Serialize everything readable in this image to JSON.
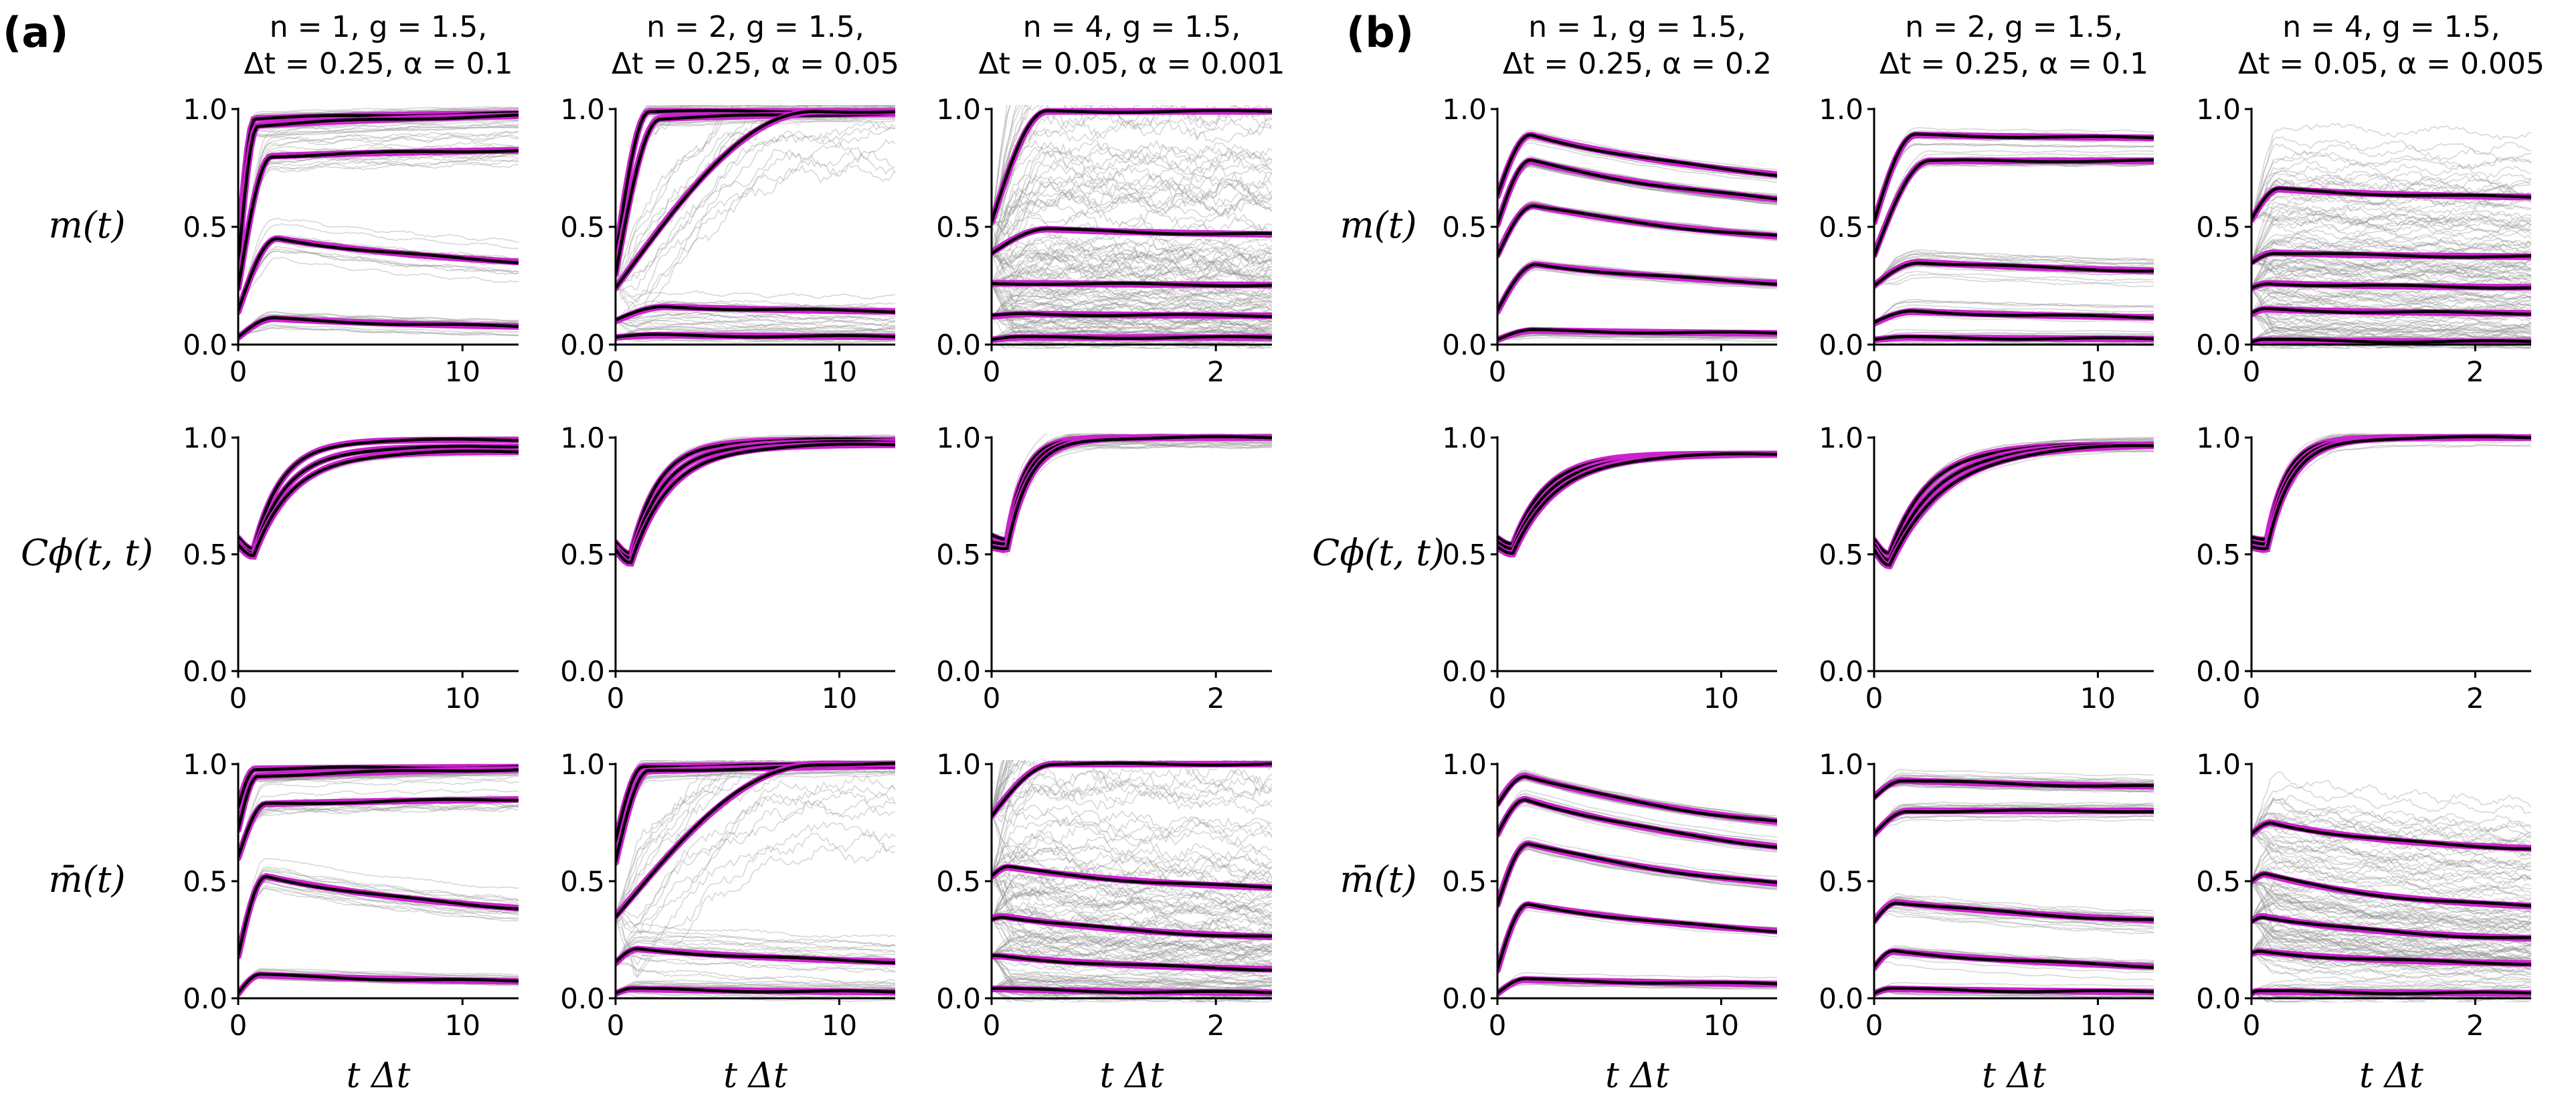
{
  "figure": {
    "panel_a": "(a)",
    "panel_b": "(b)",
    "row_labels": [
      "m(t)",
      "Cϕ(t, t)",
      "m̄(t)"
    ],
    "xlabel": "t Δt",
    "colors": {
      "ensemble": "#8c8c8c",
      "theory": "#cc22cc",
      "mean": "#000000"
    }
  },
  "chart_data": [
    {
      "type": "line",
      "panel": "(a)",
      "columns": [
        {
          "title_line1": "n = 1, g = 1.5,",
          "title_line2": "Δt = 0.25, α = 0.1",
          "xlim": [
            0,
            12.5
          ],
          "xticks": [
            0,
            10
          ]
        },
        {
          "title_line1": "n = 2, g = 1.5,",
          "title_line2": "Δt = 0.25, α = 0.05",
          "xlim": [
            0,
            12.5
          ],
          "xticks": [
            0,
            10
          ]
        },
        {
          "title_line1": "n = 4, g = 1.5,",
          "title_line2": "Δt = 0.05, α = 0.001",
          "xlim": [
            0,
            2.5
          ],
          "xticks": [
            0,
            2
          ]
        }
      ],
      "ylim": [
        0,
        1
      ],
      "yticks": [
        "0.0",
        "0.5",
        "1.0"
      ],
      "rows": [
        {
          "ylabel": "m(t)",
          "curves": [
            [
              {
                "x0": 0.4,
                "xp": 0.06,
                "yp": 0.96,
                "yinf": 0.99,
                "tau": 0.8,
                "spread": 0.02
              },
              {
                "x0": 0.35,
                "xp": 0.07,
                "yp": 0.93,
                "yinf": 0.99,
                "tau": 0.8,
                "spread": 0.03
              },
              {
                "x0": 0.24,
                "xp": 0.12,
                "yp": 0.8,
                "yinf": 0.84,
                "tau": 0.9,
                "spread": 0.08
              },
              {
                "x0": 0.14,
                "xp": 0.14,
                "yp": 0.45,
                "yinf": 0.3,
                "tau": 0.8,
                "spread": 0.06
              },
              {
                "x0": 0.03,
                "xp": 0.13,
                "yp": 0.11,
                "yinf": 0.06,
                "tau": 0.8,
                "spread": 0.03
              }
            ],
            [
              {
                "x0": 0.37,
                "xp": 0.12,
                "yp": 0.99,
                "yinf": 0.99,
                "tau": 0.7,
                "spread": 0.02
              },
              {
                "x0": 0.3,
                "xp": 0.16,
                "yp": 0.96,
                "yinf": 0.99,
                "tau": 0.7,
                "spread": 0.03
              },
              {
                "x0": 0.24,
                "xp": 0.72,
                "yp": 0.99,
                "yinf": 0.99,
                "tau": 1.0,
                "spread": 0.3
              },
              {
                "x0": 0.1,
                "xp": 0.18,
                "yp": 0.16,
                "yinf": 0.13,
                "tau": 0.8,
                "spread": 0.07
              },
              {
                "x0": 0.03,
                "xp": 0.15,
                "yp": 0.04,
                "yinf": 0.03,
                "tau": 0.8,
                "spread": 0.03
              }
            ],
            [
              {
                "x0": 0.52,
                "xp": 0.2,
                "yp": 0.99,
                "yinf": 0.99,
                "tau": 0.5,
                "spread": 0.35
              },
              {
                "x0": 0.39,
                "xp": 0.2,
                "yp": 0.49,
                "yinf": 0.46,
                "tau": 0.6,
                "spread": 0.28
              },
              {
                "x0": 0.26,
                "xp": 0.18,
                "yp": 0.26,
                "yinf": 0.25,
                "tau": 0.6,
                "spread": 0.18
              },
              {
                "x0": 0.12,
                "xp": 0.14,
                "yp": 0.13,
                "yinf": 0.12,
                "tau": 0.6,
                "spread": 0.12
              },
              {
                "x0": 0.02,
                "xp": 0.1,
                "yp": 0.03,
                "yinf": 0.03,
                "tau": 0.6,
                "spread": 0.05
              }
            ]
          ]
        },
        {
          "ylabel": "Cϕ(t, t)",
          "curves": [
            [
              {
                "x0": 0.57,
                "xp": 0.4,
                "ymin": 0.52,
                "yinf": 0.99,
                "tau": 0.1,
                "spread": 0.01
              },
              {
                "x0": 0.55,
                "xp": 0.35,
                "ymin": 0.5,
                "yinf": 0.96,
                "tau": 0.12,
                "spread": 0.01
              },
              {
                "x0": 0.54,
                "xp": 0.3,
                "ymin": 0.49,
                "yinf": 0.94,
                "tau": 0.14,
                "spread": 0.01
              }
            ],
            [
              {
                "x0": 0.55,
                "xp": 0.5,
                "ymin": 0.5,
                "yinf": 0.99,
                "tau": 0.1,
                "spread": 0.02
              },
              {
                "x0": 0.53,
                "xp": 0.4,
                "ymin": 0.48,
                "yinf": 0.98,
                "tau": 0.12,
                "spread": 0.02
              },
              {
                "x0": 0.52,
                "xp": 0.3,
                "ymin": 0.46,
                "yinf": 0.97,
                "tau": 0.14,
                "spread": 0.02
              }
            ],
            [
              {
                "x0": 0.58,
                "xp": 0.2,
                "ymin": 0.56,
                "yinf": 1.0,
                "tau": 0.06,
                "spread": 0.04
              },
              {
                "x0": 0.55,
                "xp": 0.18,
                "ymin": 0.54,
                "yinf": 1.0,
                "tau": 0.07,
                "spread": 0.04
              },
              {
                "x0": 0.53,
                "xp": 0.16,
                "ymin": 0.52,
                "yinf": 1.0,
                "tau": 0.08,
                "spread": 0.04
              }
            ]
          ]
        },
        {
          "ylabel": "m̄(t)",
          "curves": [
            [
              {
                "x0": 0.82,
                "xp": 0.06,
                "yp": 0.98,
                "yinf": 0.99,
                "tau": 0.8,
                "spread": 0.01
              },
              {
                "x0": 0.72,
                "xp": 0.07,
                "yp": 0.95,
                "yinf": 0.99,
                "tau": 0.8,
                "spread": 0.02
              },
              {
                "x0": 0.6,
                "xp": 0.1,
                "yp": 0.83,
                "yinf": 0.86,
                "tau": 0.9,
                "spread": 0.06
              },
              {
                "x0": 0.18,
                "xp": 0.1,
                "yp": 0.52,
                "yinf": 0.32,
                "tau": 0.8,
                "spread": 0.05
              },
              {
                "x0": 0.02,
                "xp": 0.08,
                "yp": 0.1,
                "yinf": 0.06,
                "tau": 0.8,
                "spread": 0.02
              }
            ],
            [
              {
                "x0": 0.67,
                "xp": 0.1,
                "yp": 0.99,
                "yinf": 1.0,
                "tau": 0.7,
                "spread": 0.02
              },
              {
                "x0": 0.58,
                "xp": 0.12,
                "yp": 0.97,
                "yinf": 1.0,
                "tau": 0.7,
                "spread": 0.03
              },
              {
                "x0": 0.35,
                "xp": 0.72,
                "yp": 1.0,
                "yinf": 1.0,
                "tau": 1.0,
                "spread": 0.3
              },
              {
                "x0": 0.15,
                "xp": 0.08,
                "yp": 0.21,
                "yinf": 0.13,
                "tau": 0.8,
                "spread": 0.07
              },
              {
                "x0": 0.02,
                "xp": 0.06,
                "yp": 0.04,
                "yinf": 0.02,
                "tau": 0.8,
                "spread": 0.03
              }
            ],
            [
              {
                "x0": 0.78,
                "xp": 0.22,
                "yp": 1.0,
                "yinf": 1.0,
                "tau": 0.5,
                "spread": 0.35
              },
              {
                "x0": 0.52,
                "xp": 0.06,
                "yp": 0.56,
                "yinf": 0.45,
                "tau": 0.6,
                "spread": 0.28
              },
              {
                "x0": 0.34,
                "xp": 0.04,
                "yp": 0.35,
                "yinf": 0.24,
                "tau": 0.6,
                "spread": 0.18
              },
              {
                "x0": 0.18,
                "xp": 0.03,
                "yp": 0.18,
                "yinf": 0.11,
                "tau": 0.6,
                "spread": 0.12
              },
              {
                "x0": 0.04,
                "xp": 0.02,
                "yp": 0.04,
                "yinf": 0.02,
                "tau": 0.6,
                "spread": 0.05
              }
            ]
          ]
        }
      ]
    },
    {
      "type": "line",
      "panel": "(b)",
      "columns": [
        {
          "title_line1": "n = 1, g = 1.5,",
          "title_line2": "Δt = 0.25, α = 0.2",
          "xlim": [
            0,
            12.5
          ],
          "xticks": [
            0,
            10
          ]
        },
        {
          "title_line1": "n = 2, g = 1.5,",
          "title_line2": "Δt = 0.25, α = 0.1",
          "xlim": [
            0,
            12.5
          ],
          "xticks": [
            0,
            10
          ]
        },
        {
          "title_line1": "n = 4, g = 1.5,",
          "title_line2": "Δt = 0.05, α = 0.005",
          "xlim": [
            0,
            2.5
          ],
          "xticks": [
            0,
            2
          ]
        }
      ],
      "ylim": [
        0,
        1
      ],
      "yticks": [
        "0.0",
        "0.5",
        "1.0"
      ],
      "rows": [
        {
          "ylabel": "m(t)",
          "curves": [
            [
              {
                "x0": 0.63,
                "xp": 0.12,
                "yp": 0.89,
                "yinf": 0.62,
                "tau": 0.9,
                "spread": 0.02
              },
              {
                "x0": 0.51,
                "xp": 0.12,
                "yp": 0.78,
                "yinf": 0.52,
                "tau": 0.9,
                "spread": 0.02
              },
              {
                "x0": 0.38,
                "xp": 0.13,
                "yp": 0.59,
                "yinf": 0.38,
                "tau": 0.9,
                "spread": 0.02
              },
              {
                "x0": 0.14,
                "xp": 0.14,
                "yp": 0.34,
                "yinf": 0.21,
                "tau": 0.9,
                "spread": 0.02
              },
              {
                "x0": 0.02,
                "xp": 0.13,
                "yp": 0.06,
                "yinf": 0.04,
                "tau": 0.9,
                "spread": 0.02
              }
            ],
            [
              {
                "x0": 0.52,
                "xp": 0.15,
                "yp": 0.89,
                "yinf": 0.87,
                "tau": 0.9,
                "spread": 0.03
              },
              {
                "x0": 0.38,
                "xp": 0.2,
                "yp": 0.78,
                "yinf": 0.78,
                "tau": 0.9,
                "spread": 0.03
              },
              {
                "x0": 0.25,
                "xp": 0.16,
                "yp": 0.35,
                "yinf": 0.29,
                "tau": 0.9,
                "spread": 0.04
              },
              {
                "x0": 0.09,
                "xp": 0.14,
                "yp": 0.14,
                "yinf": 0.1,
                "tau": 0.9,
                "spread": 0.03
              },
              {
                "x0": 0.02,
                "xp": 0.12,
                "yp": 0.03,
                "yinf": 0.02,
                "tau": 0.9,
                "spread": 0.02
              }
            ],
            [
              {
                "x0": 0.53,
                "xp": 0.1,
                "yp": 0.66,
                "yinf": 0.62,
                "tau": 0.5,
                "spread": 0.18
              },
              {
                "x0": 0.35,
                "xp": 0.08,
                "yp": 0.39,
                "yinf": 0.37,
                "tau": 0.5,
                "spread": 0.15
              },
              {
                "x0": 0.24,
                "xp": 0.06,
                "yp": 0.26,
                "yinf": 0.24,
                "tau": 0.5,
                "spread": 0.12
              },
              {
                "x0": 0.13,
                "xp": 0.05,
                "yp": 0.15,
                "yinf": 0.13,
                "tau": 0.5,
                "spread": 0.1
              },
              {
                "x0": 0.01,
                "xp": 0.04,
                "yp": 0.02,
                "yinf": 0.01,
                "tau": 0.5,
                "spread": 0.05
              }
            ]
          ]
        },
        {
          "ylabel": "Cϕ(t, t)",
          "curves": [
            [
              {
                "x0": 0.57,
                "xp": 0.45,
                "ymin": 0.54,
                "yinf": 0.93,
                "tau": 0.12,
                "spread": 0.01
              },
              {
                "x0": 0.55,
                "xp": 0.35,
                "ymin": 0.52,
                "yinf": 0.93,
                "tau": 0.14,
                "spread": 0.01
              },
              {
                "x0": 0.53,
                "xp": 0.3,
                "ymin": 0.5,
                "yinf": 0.93,
                "tau": 0.16,
                "spread": 0.01
              }
            ],
            [
              {
                "x0": 0.56,
                "xp": 0.45,
                "ymin": 0.5,
                "yinf": 0.97,
                "tau": 0.14,
                "spread": 0.02
              },
              {
                "x0": 0.54,
                "xp": 0.4,
                "ymin": 0.47,
                "yinf": 0.97,
                "tau": 0.17,
                "spread": 0.02
              },
              {
                "x0": 0.52,
                "xp": 0.35,
                "ymin": 0.45,
                "yinf": 0.97,
                "tau": 0.2,
                "spread": 0.02
              }
            ],
            [
              {
                "x0": 0.57,
                "xp": 0.18,
                "ymin": 0.56,
                "yinf": 1.0,
                "tau": 0.07,
                "spread": 0.03
              },
              {
                "x0": 0.55,
                "xp": 0.16,
                "ymin": 0.54,
                "yinf": 1.0,
                "tau": 0.08,
                "spread": 0.03
              },
              {
                "x0": 0.53,
                "xp": 0.14,
                "ymin": 0.52,
                "yinf": 1.0,
                "tau": 0.09,
                "spread": 0.03
              }
            ]
          ]
        },
        {
          "ylabel": "m̄(t)",
          "curves": [
            [
              {
                "x0": 0.83,
                "xp": 0.1,
                "yp": 0.95,
                "yinf": 0.64,
                "tau": 0.9,
                "spread": 0.02
              },
              {
                "x0": 0.7,
                "xp": 0.1,
                "yp": 0.85,
                "yinf": 0.53,
                "tau": 0.9,
                "spread": 0.02
              },
              {
                "x0": 0.4,
                "xp": 0.11,
                "yp": 0.66,
                "yinf": 0.39,
                "tau": 0.9,
                "spread": 0.02
              },
              {
                "x0": 0.12,
                "xp": 0.11,
                "yp": 0.4,
                "yinf": 0.22,
                "tau": 0.9,
                "spread": 0.02
              },
              {
                "x0": 0.02,
                "xp": 0.1,
                "yp": 0.08,
                "yinf": 0.05,
                "tau": 0.9,
                "spread": 0.02
              }
            ],
            [
              {
                "x0": 0.86,
                "xp": 0.1,
                "yp": 0.93,
                "yinf": 0.89,
                "tau": 0.9,
                "spread": 0.03
              },
              {
                "x0": 0.7,
                "xp": 0.12,
                "yp": 0.8,
                "yinf": 0.8,
                "tau": 0.9,
                "spread": 0.03
              },
              {
                "x0": 0.33,
                "xp": 0.08,
                "yp": 0.41,
                "yinf": 0.29,
                "tau": 0.9,
                "spread": 0.04
              },
              {
                "x0": 0.13,
                "xp": 0.07,
                "yp": 0.2,
                "yinf": 0.1,
                "tau": 0.9,
                "spread": 0.03
              },
              {
                "x0": 0.02,
                "xp": 0.06,
                "yp": 0.04,
                "yinf": 0.02,
                "tau": 0.9,
                "spread": 0.02
              }
            ],
            [
              {
                "x0": 0.7,
                "xp": 0.07,
                "yp": 0.75,
                "yinf": 0.62,
                "tau": 0.5,
                "spread": 0.18
              },
              {
                "x0": 0.5,
                "xp": 0.05,
                "yp": 0.53,
                "yinf": 0.37,
                "tau": 0.5,
                "spread": 0.15
              },
              {
                "x0": 0.33,
                "xp": 0.04,
                "yp": 0.35,
                "yinf": 0.24,
                "tau": 0.5,
                "spread": 0.12
              },
              {
                "x0": 0.19,
                "xp": 0.03,
                "yp": 0.2,
                "yinf": 0.14,
                "tau": 0.5,
                "spread": 0.1
              },
              {
                "x0": 0.02,
                "xp": 0.02,
                "yp": 0.03,
                "yinf": 0.02,
                "tau": 0.5,
                "spread": 0.05
              }
            ]
          ]
        }
      ]
    }
  ]
}
